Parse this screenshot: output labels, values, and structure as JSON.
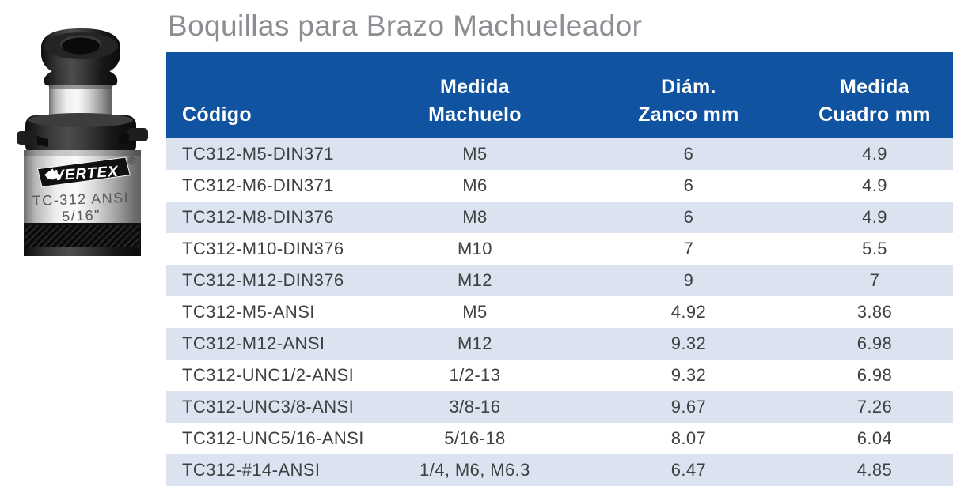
{
  "page": {
    "title": "Boquillas para Brazo Machueleador"
  },
  "product_image": {
    "brand": "VERTEX",
    "registered_mark": "®",
    "model_text": "TC-312 ANSI",
    "size_text": "5/16\""
  },
  "table": {
    "columns": [
      "Código",
      "Medida\nMachuelo",
      "Diám.\nZanco mm",
      "Medida\nCuadro mm"
    ],
    "rows": [
      [
        "TC312-M5-DIN371",
        "M5",
        "6",
        "4.9"
      ],
      [
        "TC312-M6-DIN371",
        "M6",
        "6",
        "4.9"
      ],
      [
        "TC312-M8-DIN376",
        "M8",
        "6",
        "4.9"
      ],
      [
        "TC312-M10-DIN376",
        "M10",
        "7",
        "5.5"
      ],
      [
        "TC312-M12-DIN376",
        "M12",
        "9",
        "7"
      ],
      [
        "TC312-M5-ANSI",
        "M5",
        "4.92",
        "3.86"
      ],
      [
        "TC312-M12-ANSI",
        "M12",
        "9.32",
        "6.98"
      ],
      [
        "TC312-UNC1/2-ANSI",
        "1/2-13",
        "9.32",
        "6.98"
      ],
      [
        "TC312-UNC3/8-ANSI",
        "3/8-16",
        "9.67",
        "7.26"
      ],
      [
        "TC312-UNC5/16-ANSI",
        "5/16-18",
        "8.07",
        "6.04"
      ],
      [
        "TC312-#14-ANSI",
        "1/4, M6, M6.3",
        "6.47",
        "4.85"
      ]
    ]
  },
  "colors": {
    "header_bg": "#1053a1",
    "stripe_bg": "#dae3ef",
    "title_gray": "#8b8e93",
    "cell_text": "#3f4042"
  }
}
